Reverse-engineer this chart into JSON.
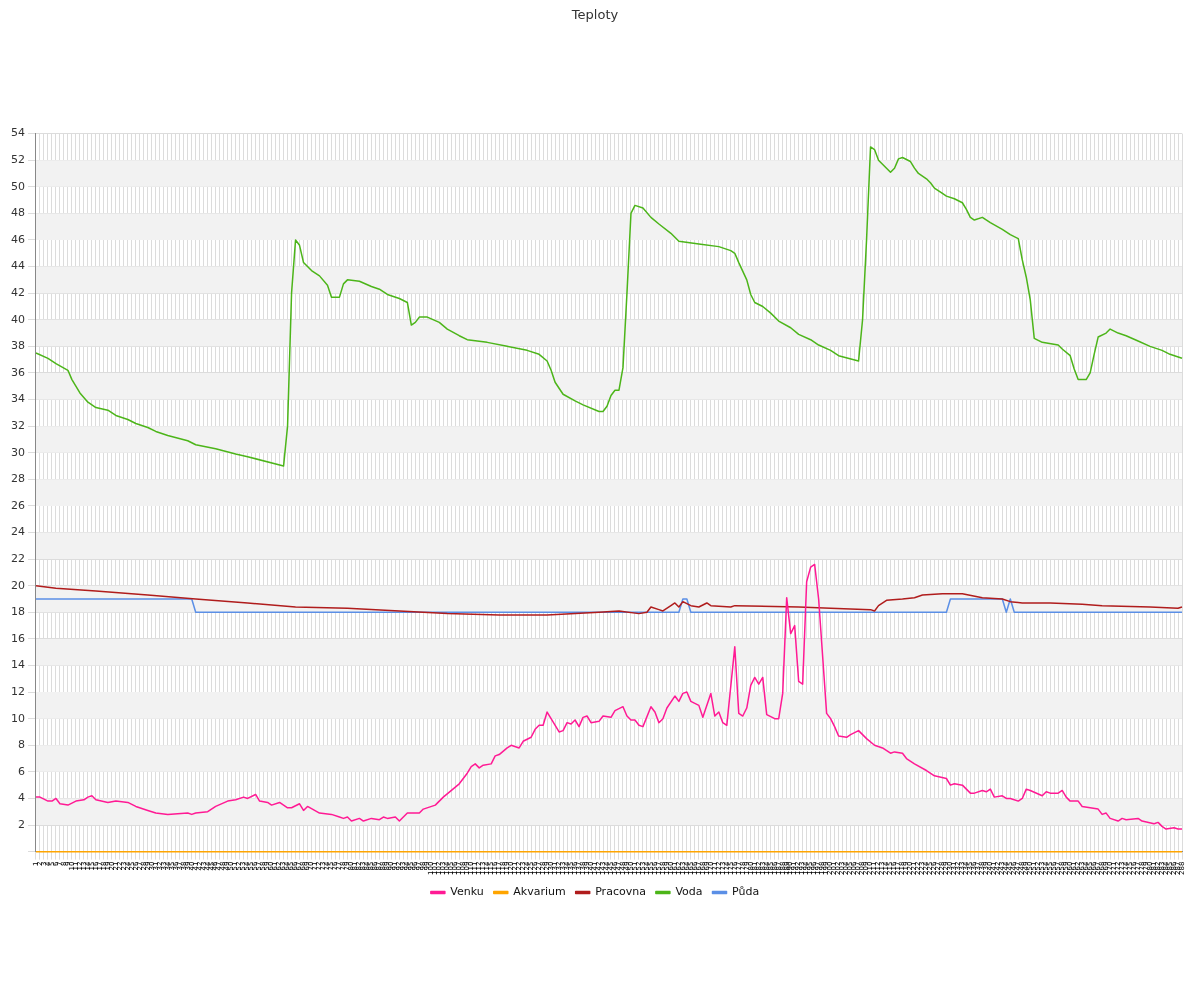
{
  "chart_data": {
    "type": "line",
    "title": "Teploty",
    "xlim": [
      1,
      288
    ],
    "xticks": [
      1,
      2,
      3,
      4,
      5,
      6,
      7,
      8,
      9,
      10,
      11,
      12,
      13,
      14,
      15,
      16,
      17,
      18,
      19,
      20,
      21,
      22,
      23,
      24,
      25,
      26,
      27,
      28,
      29,
      30,
      31,
      32,
      33,
      34,
      35,
      36,
      37,
      38,
      39,
      40,
      41,
      42,
      43,
      44,
      45,
      46,
      47,
      48,
      49,
      50,
      51,
      52,
      53,
      54,
      55,
      56,
      57,
      58,
      59,
      60,
      61,
      62,
      63,
      64,
      65,
      66,
      67,
      68,
      69,
      70,
      71,
      72,
      73,
      74,
      75,
      76,
      77,
      78,
      79,
      80,
      81,
      82,
      83,
      84,
      85,
      86,
      87,
      88,
      89,
      90,
      91,
      92,
      93,
      94,
      95,
      96,
      97,
      98,
      99,
      100,
      101,
      102,
      103,
      104,
      105,
      106,
      107,
      108,
      109,
      110,
      111,
      112,
      113,
      114,
      115,
      116,
      117,
      118,
      119,
      120,
      121,
      122,
      123,
      124,
      125,
      126,
      127,
      128,
      129,
      130,
      131,
      132,
      133,
      134,
      135,
      136,
      137,
      138,
      139,
      140,
      141,
      142,
      143,
      144,
      145,
      146,
      147,
      148,
      149,
      150,
      151,
      152,
      153,
      154,
      155,
      156,
      157,
      158,
      159,
      160,
      161,
      162,
      163,
      164,
      165,
      166,
      167,
      168,
      169,
      170,
      171,
      172,
      173,
      174,
      175,
      176,
      177,
      178,
      179,
      180,
      181,
      182,
      183,
      184,
      185,
      186,
      187,
      188,
      189,
      190,
      191,
      192,
      193,
      194,
      195,
      196,
      197,
      198,
      199,
      200,
      201,
      202,
      203,
      204,
      205,
      206,
      207,
      208,
      209,
      210,
      211,
      212,
      213,
      214,
      215,
      216,
      217,
      218,
      219,
      220,
      221,
      222,
      223,
      224,
      225,
      226,
      227,
      228,
      229,
      230,
      231,
      232,
      233,
      234,
      235,
      236,
      237,
      238,
      239,
      240,
      241,
      242,
      243,
      244,
      245,
      246,
      247,
      248,
      249,
      250,
      251,
      252,
      253,
      254,
      255,
      256,
      257,
      258,
      259,
      260,
      261,
      262,
      263,
      264,
      265,
      266,
      267,
      268,
      269,
      270,
      271,
      272,
      273,
      274,
      275,
      276,
      277,
      278,
      279,
      280,
      281,
      282,
      283,
      284,
      285,
      286,
      287,
      288
    ],
    "ylim": [
      0,
      54
    ],
    "yticks": [
      {
        "value": 0,
        "label": null
      },
      2,
      4,
      6,
      8,
      10,
      12,
      14,
      16,
      18,
      20,
      22,
      24,
      26,
      28,
      30,
      32,
      34,
      36,
      38,
      40,
      42,
      44,
      46,
      48,
      50,
      52,
      54
    ],
    "grid": true,
    "legend": "bottom",
    "marker": "none",
    "line_style": "solid",
    "series": [
      {
        "name": "Půda",
        "color": "#5b8fe6",
        "x": [
          1,
          40,
          41,
          162,
          163,
          164,
          165,
          229,
          230,
          243,
          244,
          245,
          246,
          288
        ],
        "values": [
          19,
          19,
          18,
          18,
          19,
          19,
          18,
          18,
          19,
          19,
          18,
          19,
          18,
          18
        ]
      },
      {
        "name": "Voda",
        "color": "#4cb519",
        "x": [
          1,
          4,
          6,
          9,
          10,
          12,
          14,
          16,
          19,
          21,
          24,
          26,
          29,
          31,
          34,
          39,
          41,
          46,
          51,
          54,
          63,
          64,
          65,
          66,
          67,
          68,
          70,
          72,
          74,
          75,
          77,
          78,
          79,
          82,
          85,
          87,
          89,
          92,
          94,
          95,
          96,
          97,
          99,
          102,
          104,
          107,
          109,
          114,
          119,
          124,
          127,
          129,
          130,
          131,
          133,
          136,
          138,
          142,
          143,
          144,
          145,
          146,
          147,
          148,
          149,
          150,
          151,
          153,
          155,
          157,
          160,
          162,
          167,
          172,
          175,
          176,
          177,
          179,
          180,
          181,
          183,
          185,
          187,
          190,
          192,
          195,
          197,
          200,
          202,
          207,
          208,
          209,
          210,
          211,
          212,
          214,
          215,
          216,
          217,
          218,
          220,
          221,
          222,
          224,
          225,
          226,
          228,
          229,
          231,
          233,
          234,
          235,
          236,
          238,
          240,
          243,
          245,
          247,
          248,
          249,
          250,
          251,
          253,
          257,
          258,
          260,
          261,
          262,
          264,
          265,
          266,
          267,
          269,
          270,
          272,
          274,
          277,
          280,
          283,
          285,
          288
        ],
        "values": [
          37.5,
          37.1,
          36.7,
          36.2,
          35.5,
          34.5,
          33.8,
          33.4,
          33.2,
          32.8,
          32.5,
          32.2,
          31.9,
          31.6,
          31.3,
          30.9,
          30.6,
          30.3,
          29.9,
          29.7,
          29.0,
          32,
          42,
          46,
          45.6,
          44.3,
          43.7,
          43.3,
          42.6,
          41.7,
          41.7,
          42.7,
          43.0,
          42.9,
          42.5,
          42.3,
          41.9,
          41.6,
          41.3,
          39.6,
          39.8,
          40.2,
          40.2,
          39.8,
          39.3,
          38.8,
          38.5,
          38.3,
          38.0,
          37.7,
          37.4,
          36.9,
          36.2,
          35.3,
          34.4,
          33.9,
          33.6,
          33.1,
          33.1,
          33.5,
          34.3,
          34.7,
          34.7,
          36.4,
          42,
          48,
          48.6,
          48.4,
          47.7,
          47.2,
          46.5,
          45.9,
          45.7,
          45.5,
          45.2,
          45.0,
          44.3,
          43,
          41.9,
          41.3,
          41.0,
          40.5,
          39.9,
          39.4,
          38.9,
          38.5,
          38.1,
          37.7,
          37.3,
          36.9,
          40,
          46,
          53,
          52.8,
          52,
          51.4,
          51.1,
          51.4,
          52.1,
          52.2,
          51.9,
          51.4,
          51,
          50.6,
          50.3,
          49.9,
          49.5,
          49.3,
          49.1,
          48.8,
          48.3,
          47.7,
          47.5,
          47.7,
          47.3,
          46.8,
          46.4,
          46.1,
          44.5,
          43.2,
          41.5,
          38.6,
          38.3,
          38.1,
          37.8,
          37.3,
          36.3,
          35.5,
          35.5,
          36,
          37.4,
          38.7,
          39.0,
          39.3,
          39.0,
          38.8,
          38.4,
          38.0,
          37.7,
          37.4,
          37.1
        ]
      },
      {
        "name": "Pracovna",
        "color": "#b01c1c",
        "x": [
          1,
          6,
          16,
          29,
          41,
          54,
          66,
          79,
          92,
          104,
          117,
          129,
          142,
          147,
          152,
          154,
          155,
          157,
          158,
          160,
          161,
          162,
          163,
          165,
          167,
          169,
          170,
          175,
          176,
          192,
          200,
          210,
          211,
          212,
          214,
          218,
          221,
          223,
          228,
          233,
          238,
          243,
          245,
          248,
          255,
          263,
          268,
          280,
          287,
          288
        ],
        "values": [
          20.0,
          19.8,
          19.6,
          19.3,
          19.0,
          18.7,
          18.4,
          18.3,
          18.1,
          17.9,
          17.8,
          17.8,
          18.0,
          18.1,
          17.9,
          18.0,
          18.4,
          18.2,
          18.1,
          18.5,
          18.7,
          18.4,
          18.8,
          18.5,
          18.4,
          18.7,
          18.5,
          18.4,
          18.5,
          18.4,
          18.3,
          18.2,
          18.1,
          18.5,
          18.9,
          19.0,
          19.1,
          19.3,
          19.4,
          19.4,
          19.1,
          19.0,
          18.8,
          18.7,
          18.7,
          18.6,
          18.5,
          18.4,
          18.3,
          18.4
        ]
      },
      {
        "name": "Akvarium",
        "color": "#ffa500",
        "x": [
          1,
          288
        ],
        "values": [
          0,
          0
        ]
      },
      {
        "name": "Venku",
        "color": "#ff1a94",
        "x": [
          1,
          2,
          4,
          5,
          6,
          7,
          9,
          11,
          13,
          14,
          15,
          16,
          19,
          21,
          24,
          26,
          29,
          31,
          34,
          39,
          40,
          41,
          44,
          46,
          49,
          51,
          53,
          54,
          56,
          57,
          59,
          60,
          62,
          64,
          65,
          67,
          68,
          69,
          72,
          75,
          77,
          78,
          79,
          80,
          82,
          83,
          85,
          87,
          88,
          89,
          91,
          92,
          94,
          97,
          98,
          101,
          103,
          107,
          109,
          110,
          111,
          112,
          113,
          115,
          116,
          117,
          119,
          120,
          122,
          123,
          125,
          126,
          127,
          128,
          129,
          130,
          132,
          133,
          134,
          135,
          136,
          137,
          138,
          139,
          140,
          142,
          143,
          145,
          146,
          148,
          149,
          150,
          151,
          152,
          153,
          155,
          156,
          157,
          158,
          159,
          161,
          162,
          163,
          164,
          165,
          167,
          168,
          170,
          171,
          172,
          173,
          174,
          176,
          177,
          178,
          179,
          180,
          181,
          182,
          183,
          184,
          186,
          187,
          188,
          189,
          190,
          191,
          192,
          193,
          194,
          195,
          196,
          197,
          199,
          200,
          201,
          202,
          204,
          205,
          207,
          209,
          211,
          213,
          215,
          216,
          218,
          219,
          221,
          224,
          226,
          229,
          230,
          231,
          233,
          234,
          235,
          236,
          238,
          239,
          240,
          241,
          243,
          244,
          245,
          247,
          248,
          249,
          250,
          253,
          254,
          255,
          257,
          258,
          259,
          260,
          262,
          263,
          265,
          267,
          268,
          269,
          270,
          272,
          273,
          274,
          277,
          278,
          281,
          282,
          283,
          284,
          286,
          287,
          288
        ],
        "values": [
          4.1,
          4.1,
          3.8,
          3.8,
          4.0,
          3.6,
          3.5,
          3.8,
          3.9,
          4.1,
          4.2,
          3.9,
          3.7,
          3.8,
          3.7,
          3.4,
          3.1,
          2.9,
          2.8,
          2.9,
          2.8,
          2.9,
          3.0,
          3.4,
          3.8,
          3.9,
          4.1,
          4.0,
          4.3,
          3.8,
          3.7,
          3.5,
          3.7,
          3.3,
          3.3,
          3.6,
          3.1,
          3.4,
          2.9,
          2.8,
          2.6,
          2.5,
          2.6,
          2.3,
          2.5,
          2.3,
          2.5,
          2.4,
          2.6,
          2.5,
          2.6,
          2.3,
          2.9,
          2.9,
          3.2,
          3.5,
          4.1,
          5.1,
          5.9,
          6.4,
          6.6,
          6.3,
          6.5,
          6.6,
          7.2,
          7.3,
          7.8,
          8.0,
          7.8,
          8.3,
          8.6,
          9.2,
          9.5,
          9.5,
          10.5,
          10.0,
          9.0,
          9.1,
          9.7,
          9.6,
          9.9,
          9.4,
          10.1,
          10.2,
          9.7,
          9.8,
          10.2,
          10.1,
          10.6,
          10.9,
          10.2,
          9.9,
          9.9,
          9.5,
          9.4,
          10.9,
          10.5,
          9.7,
          10.0,
          10.8,
          11.7,
          11.3,
          11.9,
          12.0,
          11.3,
          11.0,
          10.1,
          11.9,
          10.2,
          10.5,
          9.7,
          9.5,
          15.4,
          10.4,
          10.2,
          10.8,
          12.5,
          13.1,
          12.6,
          13.1,
          10.3,
          10.0,
          10.0,
          11.9,
          19.1,
          16.4,
          17.0,
          12.8,
          12.6,
          20.3,
          21.4,
          21.6,
          19.0,
          10.4,
          10.0,
          9.4,
          8.7,
          8.6,
          8.8,
          9.1,
          8.5,
          8.0,
          7.8,
          7.4,
          7.5,
          7.4,
          7.0,
          6.6,
          6.1,
          5.7,
          5.5,
          5.0,
          5.1,
          5.0,
          4.7,
          4.4,
          4.4,
          4.6,
          4.5,
          4.7,
          4.1,
          4.2,
          4.0,
          4.0,
          3.8,
          4.0,
          4.7,
          4.6,
          4.2,
          4.5,
          4.4,
          4.4,
          4.6,
          4.1,
          3.8,
          3.8,
          3.4,
          3.3,
          3.2,
          2.8,
          2.9,
          2.5,
          2.3,
          2.5,
          2.4,
          2.5,
          2.3,
          2.1,
          2.2,
          1.9,
          1.7,
          1.8,
          1.7,
          1.7
        ]
      }
    ]
  }
}
